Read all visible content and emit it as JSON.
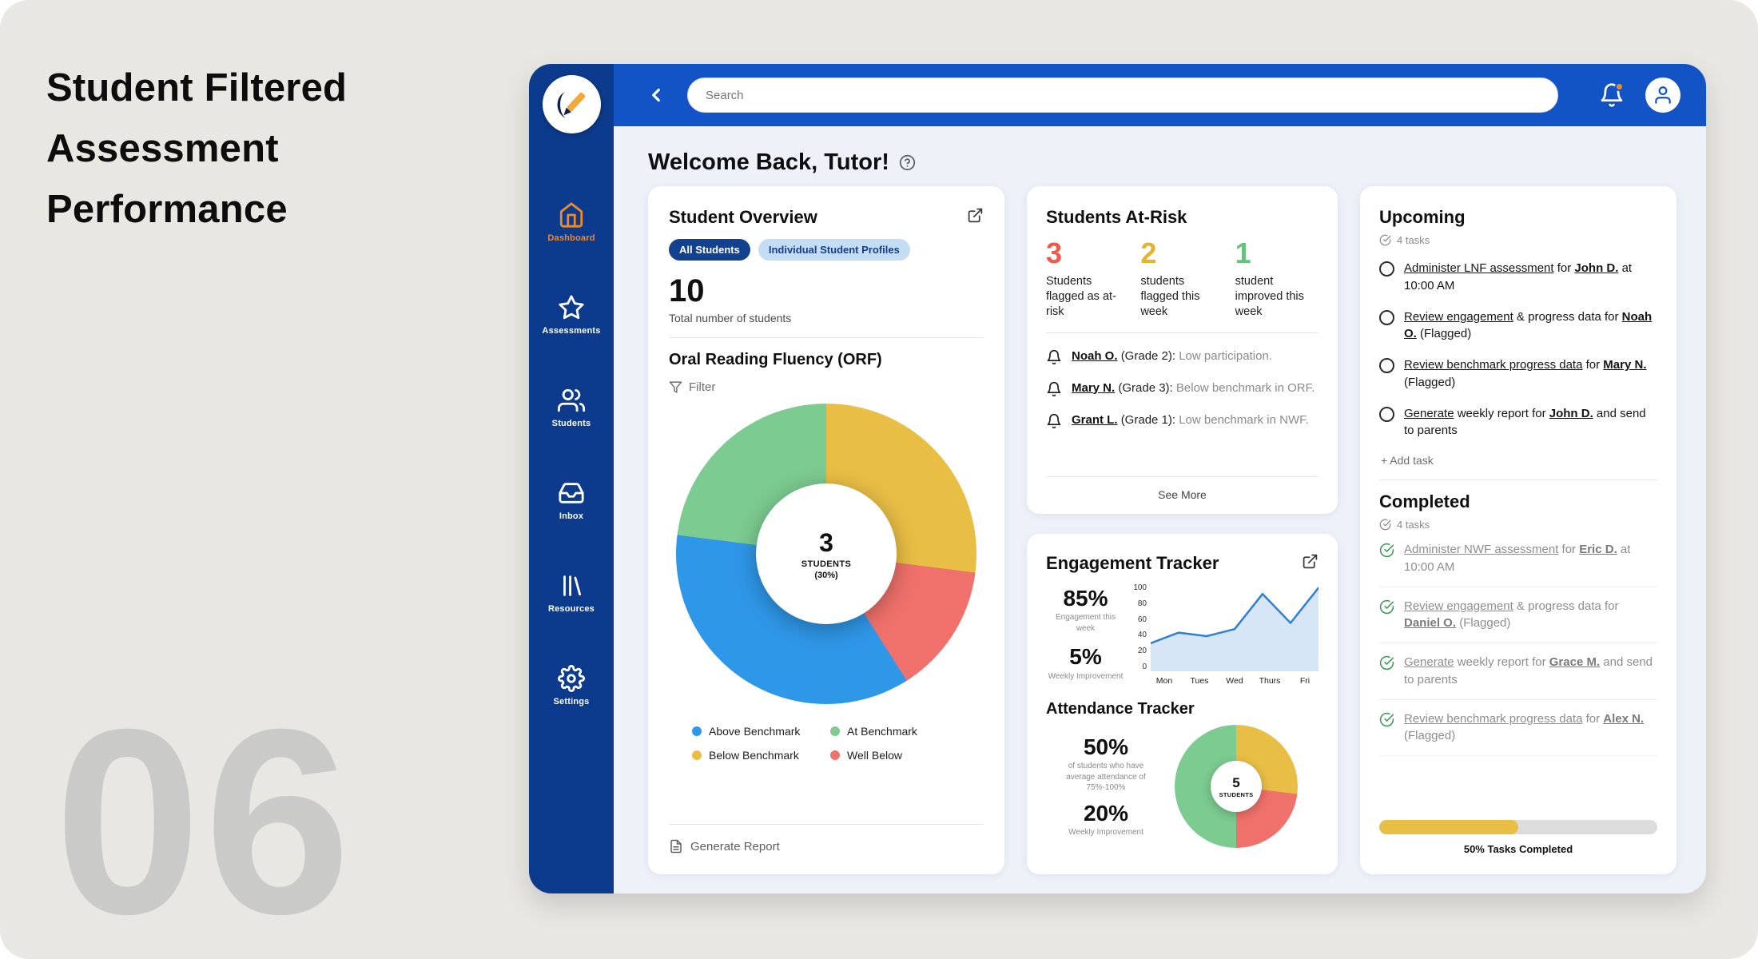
{
  "page": {
    "title_lines": [
      "Student Filtered",
      "Assessment",
      "Performance"
    ],
    "watermark": "06"
  },
  "colors": {
    "sidebar": "#0C3A8C",
    "header_blue": "#1254C6",
    "accent_orange": "#EE8A2E",
    "chart_blue": "#2F97E8",
    "chart_green": "#7CCB90",
    "chart_yellow": "#E9BE45",
    "chart_red": "#F0716B",
    "progress_yellow": "#E9BE45"
  },
  "sidebar": {
    "items": [
      {
        "label": "Dashboard",
        "icon": "home-icon",
        "active": true
      },
      {
        "label": "Assessments",
        "icon": "star-icon",
        "active": false
      },
      {
        "label": "Students",
        "icon": "students-icon",
        "active": false
      },
      {
        "label": "Inbox",
        "icon": "inbox-icon",
        "active": false
      },
      {
        "label": "Resources",
        "icon": "books-icon",
        "active": false
      },
      {
        "label": "Settings",
        "icon": "gear-icon",
        "active": false
      }
    ]
  },
  "header": {
    "search_placeholder": "Search"
  },
  "welcome": {
    "title": "Welcome Back, Tutor!"
  },
  "student_overview": {
    "title": "Student Overview",
    "tab_all": "All Students",
    "tab_individual": "Individual Student Profiles",
    "total_value": "10",
    "total_label": "Total number of students",
    "section_title": "Oral Reading Fluency (ORF)",
    "filter_label": "Filter",
    "generate_report": "Generate Report"
  },
  "at_risk": {
    "title": "Students At-Risk",
    "stats": [
      {
        "value": "3",
        "label": "Students flagged as at-risk",
        "color": "#F0584A"
      },
      {
        "value": "2",
        "label": "students flagged this week",
        "color": "#E5B32F"
      },
      {
        "value": "1",
        "label": "student improved this week",
        "color": "#67C27C"
      }
    ],
    "alerts": [
      {
        "name": "Noah O.",
        "grade": "(Grade 2):",
        "desc": "Low participation."
      },
      {
        "name": "Mary N.",
        "grade": "(Grade 3):",
        "desc": "Below benchmark in ORF."
      },
      {
        "name": "Grant L.",
        "grade": "(Grade 1):",
        "desc": "Low benchmark in NWF."
      }
    ],
    "see_more": "See More"
  },
  "engagement": {
    "title": "Engagement Tracker",
    "stat1_value": "85%",
    "stat1_label": "Engagement this week",
    "stat2_value": "5%",
    "stat2_label": "Weekly Improvement",
    "attendance_title": "Attendance Tracker",
    "att1_value": "50%",
    "att1_label": "of students who have average attendance of 75%-100%",
    "att2_value": "20%",
    "att2_label": "Weekly Improvement"
  },
  "upcoming": {
    "title": "Upcoming",
    "count": "4 tasks",
    "tasks": [
      {
        "lead": "Administer LNF assessment",
        "mid": " for ",
        "name": "John D.",
        "tail": " at 10:00 AM"
      },
      {
        "lead": "Review engagement",
        "mid": " & progress data for ",
        "name": "Noah O.",
        "tail": " (Flagged)"
      },
      {
        "lead": "Review benchmark progress data",
        "mid": " for ",
        "name": "Mary N.",
        "tail": " (Flagged)"
      },
      {
        "lead": "Generate",
        "mid": " weekly report for ",
        "name": "John D.",
        "tail": " and send to parents"
      }
    ],
    "add_task": "+ Add task"
  },
  "completed": {
    "title": "Completed",
    "count": "4 tasks",
    "tasks": [
      {
        "lead": "Administer NWF assessment",
        "mid": " for ",
        "name": "Eric D.",
        "tail": " at 10:00 AM"
      },
      {
        "lead": "Review engagement",
        "mid": " & progress data for ",
        "name": "Daniel O.",
        "tail": " (Flagged)"
      },
      {
        "lead": "Generate",
        "mid": " weekly report for ",
        "name": "Grace M.",
        "tail": " and send to parents"
      },
      {
        "lead": "Review benchmark progress data",
        "mid": " for ",
        "name": "Alex N.",
        "tail": " (Flagged)"
      }
    ],
    "progress_pct": 50,
    "progress_label": "50% Tasks Completed"
  },
  "chart_data": [
    {
      "id": "orf-donut",
      "type": "pie",
      "title": "Oral Reading Fluency (ORF)",
      "labels": [
        "Above Benchmark",
        "At Benchmark",
        "Below Benchmark",
        "Well Below"
      ],
      "values": [
        36,
        23,
        27,
        14
      ],
      "colors": [
        "#2F97E8",
        "#7CCB90",
        "#E9BE45",
        "#F0716B"
      ],
      "order": [
        2,
        3,
        0,
        1
      ],
      "total_students": 10,
      "center": {
        "value": "3",
        "label": "STUDENTS",
        "pct": "(30%)"
      }
    },
    {
      "id": "engagement-line",
      "type": "area",
      "x_labels": [
        "Mon",
        "Tues",
        "Wed",
        "Thurs",
        "Fri"
      ],
      "y_ticks": [
        "100",
        "80",
        "60",
        "40",
        "20",
        "0"
      ],
      "values": [
        32,
        44,
        40,
        48,
        88,
        55,
        95
      ],
      "ylim": [
        0,
        100
      ],
      "line_color": "#2E7FD6",
      "fill_color": "#D7E6F7"
    },
    {
      "id": "attendance-donut",
      "type": "pie",
      "values": [
        50,
        27,
        23
      ],
      "colors": [
        "#7CCB90",
        "#E9BE45",
        "#F0716B"
      ],
      "order": [
        1,
        2,
        0
      ],
      "center": {
        "value": "5",
        "label": "STUDENTS"
      }
    }
  ]
}
